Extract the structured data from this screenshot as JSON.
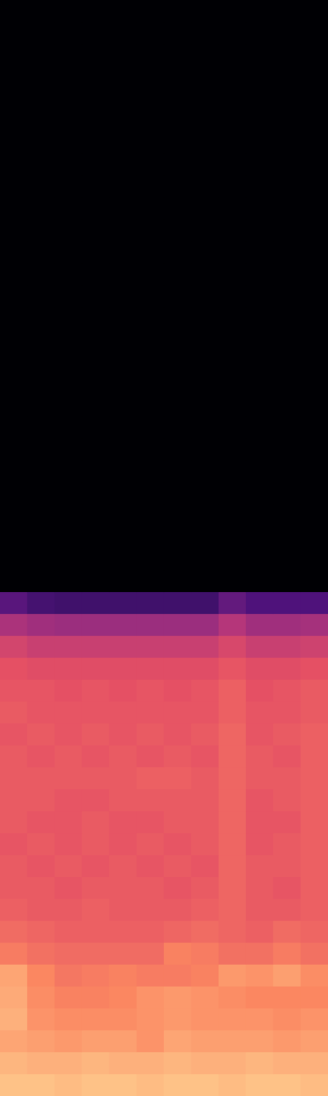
{
  "chart_data": {
    "type": "heatmap",
    "tick_labels": false,
    "grid": false,
    "zlim": [
      -80,
      0
    ],
    "cells": [
      [
        -10,
        -10,
        -11,
        -10,
        -10,
        -11,
        -10,
        -10,
        -11,
        -10,
        -10,
        -11
      ],
      [
        -12,
        -13,
        -13,
        -12,
        -13,
        -13,
        -12,
        -13,
        -13,
        -12,
        -13,
        -13
      ],
      [
        -15,
        -16,
        -17,
        -16,
        -16,
        -18,
        -15,
        -16,
        -16,
        -16,
        -17,
        -16
      ],
      [
        -13,
        -18,
        -19,
        -19,
        -19,
        -18,
        -17,
        -18,
        -18,
        -18,
        -19,
        -18
      ],
      [
        -14,
        -19,
        -21,
        -21,
        -20,
        -18,
        -17,
        -18,
        -19,
        -20,
        -20,
        -20
      ],
      [
        -15,
        -20,
        -23,
        -22,
        -21,
        -22,
        -22,
        -21,
        -17,
        -18,
        -16,
        -19
      ],
      [
        -22,
        -24,
        -25,
        -25,
        -25,
        -25,
        -21,
        -22,
        -24,
        -24,
        -22,
        -24
      ],
      [
        -25,
        -26,
        -27,
        -27,
        -27,
        -27,
        -26,
        -25,
        -26,
        -27,
        -25,
        -26
      ],
      [
        -27,
        -28,
        -28,
        -27,
        -28,
        -28,
        -28,
        -27,
        -26,
        -28,
        -28,
        -27
      ],
      [
        -28,
        -28,
        -29,
        -28,
        -28,
        -28,
        -29,
        -28,
        -26,
        -28,
        -29,
        -27
      ],
      [
        -28,
        -29,
        -28,
        -29,
        -28,
        -29,
        -28,
        -29,
        -26,
        -28,
        -28,
        -27
      ],
      [
        -29,
        -28,
        -29,
        -28,
        -29,
        -28,
        -29,
        -28,
        -26,
        -29,
        -28,
        -27
      ],
      [
        -28,
        -29,
        -29,
        -28,
        -29,
        -29,
        -28,
        -28,
        -26,
        -29,
        -29,
        -27
      ],
      [
        -28,
        -28,
        -29,
        -29,
        -28,
        -28,
        -28,
        -28,
        -26,
        -29,
        -28,
        -27
      ],
      [
        -28,
        -28,
        -28,
        -28,
        -28,
        -27,
        -27,
        -28,
        -26,
        -28,
        -28,
        -27
      ],
      [
        -28,
        -29,
        -28,
        -29,
        -28,
        -29,
        -28,
        -29,
        -26,
        -28,
        -29,
        -27
      ],
      [
        -29,
        -28,
        -29,
        -28,
        -29,
        -28,
        -29,
        -28,
        -26,
        -29,
        -28,
        -27
      ],
      [
        -28,
        -29,
        -29,
        -29,
        -29,
        -29,
        -29,
        -29,
        -27,
        -29,
        -29,
        -28
      ],
      [
        -29,
        -29,
        -30,
        -29,
        -30,
        -29,
        -30,
        -29,
        -27,
        -30,
        -29,
        -28
      ],
      [
        -30,
        -31,
        -31,
        -31,
        -31,
        -31,
        -31,
        -31,
        -29,
        -31,
        -31,
        -30
      ],
      [
        -34,
        -36,
        -36,
        -36,
        -36,
        -36,
        -36,
        -36,
        -33,
        -36,
        -36,
        -35
      ],
      [
        -42,
        -44,
        -45,
        -45,
        -45,
        -45,
        -45,
        -45,
        -40,
        -44,
        -44,
        -43
      ],
      [
        -58,
        -62,
        -63,
        -63,
        -63,
        -63,
        -63,
        -63,
        -56,
        -60,
        -60,
        -60
      ],
      [
        -80,
        -80,
        -80,
        -80,
        -80,
        -80,
        -80,
        -80,
        -80,
        -80,
        -80,
        -80
      ],
      [
        -80,
        -80,
        -80,
        -80,
        -80,
        -80,
        -80,
        -80,
        -80,
        -80,
        -80,
        -80
      ],
      [
        -80,
        -80,
        -80,
        -80,
        -80,
        -80,
        -80,
        -80,
        -80,
        -80,
        -80,
        -80
      ],
      [
        -80,
        -80,
        -80,
        -80,
        -80,
        -80,
        -80,
        -80,
        -80,
        -80,
        -80,
        -80
      ],
      [
        -80,
        -80,
        -80,
        -80,
        -80,
        -80,
        -80,
        -80,
        -80,
        -80,
        -80,
        -80
      ],
      [
        -80,
        -80,
        -80,
        -80,
        -80,
        -80,
        -80,
        -80,
        -80,
        -80,
        -80,
        -80
      ],
      [
        -80,
        -80,
        -80,
        -80,
        -80,
        -80,
        -80,
        -80,
        -80,
        -80,
        -80,
        -80
      ],
      [
        -80,
        -80,
        -80,
        -80,
        -80,
        -80,
        -80,
        -80,
        -80,
        -80,
        -80,
        -80
      ],
      [
        -80,
        -80,
        -80,
        -80,
        -80,
        -80,
        -80,
        -80,
        -80,
        -80,
        -80,
        -80
      ],
      [
        -80,
        -80,
        -80,
        -80,
        -80,
        -80,
        -80,
        -80,
        -80,
        -80,
        -80,
        -80
      ],
      [
        -80,
        -80,
        -80,
        -80,
        -80,
        -80,
        -80,
        -80,
        -80,
        -80,
        -80,
        -80
      ],
      [
        -80,
        -80,
        -80,
        -80,
        -80,
        -80,
        -80,
        -80,
        -80,
        -80,
        -80,
        -80
      ],
      [
        -80,
        -80,
        -80,
        -80,
        -80,
        -80,
        -80,
        -80,
        -80,
        -80,
        -80,
        -80
      ],
      [
        -80,
        -80,
        -80,
        -80,
        -80,
        -80,
        -80,
        -80,
        -80,
        -80,
        -80,
        -80
      ],
      [
        -80,
        -80,
        -80,
        -80,
        -80,
        -80,
        -80,
        -80,
        -80,
        -80,
        -80,
        -80
      ],
      [
        -80,
        -80,
        -80,
        -80,
        -80,
        -80,
        -80,
        -80,
        -80,
        -80,
        -80,
        -80
      ],
      [
        -80,
        -80,
        -80,
        -80,
        -80,
        -80,
        -80,
        -80,
        -80,
        -80,
        -80,
        -80
      ],
      [
        -80,
        -80,
        -80,
        -80,
        -80,
        -80,
        -80,
        -80,
        -80,
        -80,
        -80,
        -80
      ],
      [
        -80,
        -80,
        -80,
        -80,
        -80,
        -80,
        -80,
        -80,
        -80,
        -80,
        -80,
        -80
      ],
      [
        -80,
        -80,
        -80,
        -80,
        -80,
        -80,
        -80,
        -80,
        -80,
        -80,
        -80,
        -80
      ],
      [
        -80,
        -80,
        -80,
        -80,
        -80,
        -80,
        -80,
        -80,
        -80,
        -80,
        -80,
        -80
      ],
      [
        -80,
        -80,
        -80,
        -80,
        -80,
        -80,
        -80,
        -80,
        -80,
        -80,
        -80,
        -80
      ],
      [
        -80,
        -80,
        -80,
        -80,
        -80,
        -80,
        -80,
        -80,
        -80,
        -80,
        -80,
        -80
      ],
      [
        -80,
        -80,
        -80,
        -80,
        -80,
        -80,
        -80,
        -80,
        -80,
        -80,
        -80,
        -80
      ],
      [
        -80,
        -80,
        -80,
        -80,
        -80,
        -80,
        -80,
        -80,
        -80,
        -80,
        -80,
        -80
      ],
      [
        -80,
        -80,
        -80,
        -80,
        -80,
        -80,
        -80,
        -80,
        -80,
        -80,
        -80,
        -80
      ],
      [
        -80,
        -80,
        -80,
        -80,
        -80,
        -80,
        -80,
        -80,
        -80,
        -80,
        -80,
        -80
      ]
    ]
  }
}
